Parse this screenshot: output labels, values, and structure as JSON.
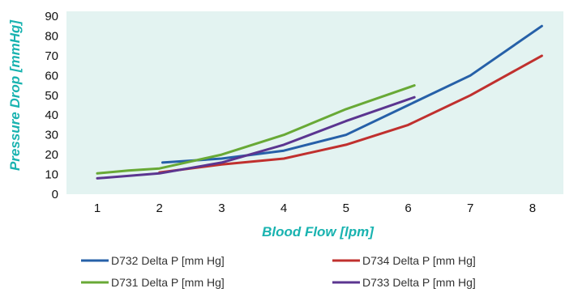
{
  "chart_data": {
    "type": "line",
    "title": "",
    "xlabel": "Blood Flow [lpm]",
    "ylabel": "Pressure Drop [mmHg]",
    "xlim": [
      0.5,
      8.5
    ],
    "ylim": [
      0,
      90
    ],
    "x_ticks": [
      1,
      2,
      3,
      4,
      5,
      6,
      7,
      8
    ],
    "y_ticks": [
      0,
      10,
      20,
      30,
      40,
      50,
      60,
      70,
      80,
      90
    ],
    "grid": false,
    "plot_background": "#e3f3f1",
    "axis_title_color": "#19b3b0",
    "legend_position": "bottom",
    "series": [
      {
        "name": "D732 Delta P [mm Hg]",
        "color": "#2660a8",
        "points": [
          [
            2.05,
            16
          ],
          [
            3.0,
            18
          ],
          [
            4.0,
            22
          ],
          [
            5.0,
            30
          ],
          [
            6.0,
            45
          ],
          [
            7.0,
            60
          ],
          [
            8.15,
            85
          ]
        ]
      },
      {
        "name": "D734 Delta P [mm Hg]",
        "color": "#c0302e",
        "points": [
          [
            2.0,
            11
          ],
          [
            3.0,
            15
          ],
          [
            4.0,
            18
          ],
          [
            5.0,
            25
          ],
          [
            6.0,
            35
          ],
          [
            7.0,
            50
          ],
          [
            8.15,
            70
          ]
        ]
      },
      {
        "name": "D731 Delta P [mm Hg]",
        "color": "#68a936",
        "points": [
          [
            1.0,
            10.5
          ],
          [
            1.5,
            12
          ],
          [
            2.0,
            13
          ],
          [
            3.0,
            20
          ],
          [
            4.0,
            30
          ],
          [
            5.0,
            43
          ],
          [
            6.1,
            55
          ]
        ]
      },
      {
        "name": "D733 Delta P [mm Hg]",
        "color": "#5b3590",
        "points": [
          [
            1.0,
            8
          ],
          [
            2.0,
            10.5
          ],
          [
            3.0,
            16
          ],
          [
            4.0,
            25
          ],
          [
            5.0,
            37
          ],
          [
            6.1,
            49
          ]
        ]
      }
    ]
  }
}
